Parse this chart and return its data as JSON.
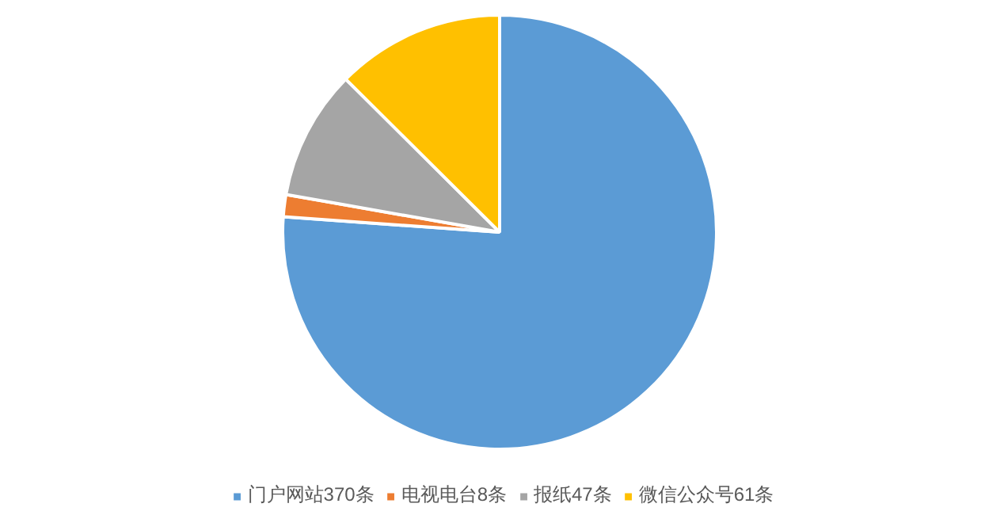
{
  "chart_data": {
    "type": "pie",
    "categories": [
      "门户网站370条",
      "电视电台8条",
      "报纸47条",
      "微信公众号61条"
    ],
    "values": [
      370,
      8,
      47,
      61
    ],
    "colors": [
      "#5b9bd5",
      "#ed7d31",
      "#a5a5a5",
      "#ffc000"
    ],
    "legend": "bottom"
  }
}
